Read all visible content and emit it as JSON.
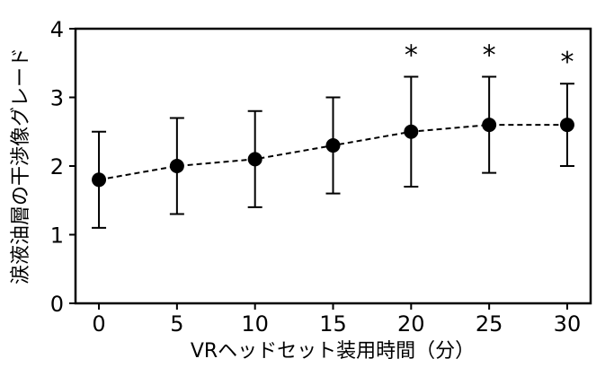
{
  "chart_data": {
    "type": "line",
    "xlabel": "VRヘッドセット装用時間（分）",
    "ylabel": "涙液油層の干渉像グレード",
    "xlim": [
      -1.5,
      31.5
    ],
    "ylim": [
      0,
      4
    ],
    "xticks": [
      "0",
      "5",
      "10",
      "15",
      "20",
      "25",
      "30"
    ],
    "yticks": [
      "0",
      "1",
      "2",
      "3",
      "4"
    ],
    "grid": false,
    "line_style": "dashed",
    "marker": "filled-circle",
    "colors": {
      "line": "#000000",
      "marker": "#000000"
    },
    "points": [
      {
        "x": 0,
        "y": 1.8,
        "err_low": 1.1,
        "err_high": 2.5,
        "sig": ""
      },
      {
        "x": 5,
        "y": 2.0,
        "err_low": 1.3,
        "err_high": 2.7,
        "sig": ""
      },
      {
        "x": 10,
        "y": 2.1,
        "err_low": 1.4,
        "err_high": 2.8,
        "sig": ""
      },
      {
        "x": 15,
        "y": 2.3,
        "err_low": 1.6,
        "err_high": 3.0,
        "sig": ""
      },
      {
        "x": 20,
        "y": 2.5,
        "err_low": 1.7,
        "err_high": 3.3,
        "sig": "*"
      },
      {
        "x": 25,
        "y": 2.6,
        "err_low": 1.9,
        "err_high": 3.3,
        "sig": "*"
      },
      {
        "x": 30,
        "y": 2.6,
        "err_low": 2.0,
        "err_high": 3.2,
        "sig": "*"
      }
    ]
  }
}
